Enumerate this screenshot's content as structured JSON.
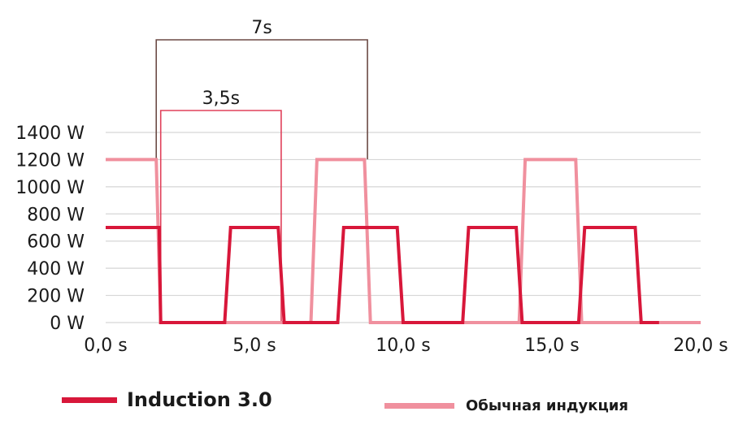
{
  "chart_data": {
    "type": "line",
    "x_ticks": [
      "0,0 s",
      "5,0 s",
      "10,0 s",
      "15,0 s",
      "20,0 s"
    ],
    "y_ticks": [
      "0 W",
      "200 W",
      "400 W",
      "600 W",
      "800 W",
      "1000 W",
      "1200 W",
      "1400 W"
    ],
    "xlim": [
      0,
      20
    ],
    "ylim": [
      0,
      1400
    ],
    "grid": true,
    "legend_position": "bottom",
    "series": [
      {
        "name": "Induction 3.0",
        "color": "#d8173a",
        "points": [
          [
            0.0,
            700
          ],
          [
            1.8,
            700
          ],
          [
            1.85,
            0
          ],
          [
            4.0,
            0
          ],
          [
            4.2,
            700
          ],
          [
            5.8,
            700
          ],
          [
            6.0,
            0
          ],
          [
            7.8,
            0
          ],
          [
            8.0,
            700
          ],
          [
            9.8,
            700
          ],
          [
            10.0,
            0
          ],
          [
            12.0,
            0
          ],
          [
            12.2,
            700
          ],
          [
            13.8,
            700
          ],
          [
            14.0,
            0
          ],
          [
            15.9,
            0
          ],
          [
            16.1,
            700
          ],
          [
            17.8,
            700
          ],
          [
            18.0,
            0
          ],
          [
            18.6,
            0
          ]
        ]
      },
      {
        "name": "Обычная индукция",
        "color": "#f0909e",
        "points": [
          [
            0.0,
            1200
          ],
          [
            1.7,
            1200
          ],
          [
            1.85,
            0
          ],
          [
            6.9,
            0
          ],
          [
            7.1,
            1200
          ],
          [
            8.7,
            1200
          ],
          [
            8.9,
            0
          ],
          [
            13.9,
            0
          ],
          [
            14.1,
            1200
          ],
          [
            15.8,
            1200
          ],
          [
            16.0,
            0
          ],
          [
            20.0,
            0
          ]
        ]
      }
    ],
    "annotations": [
      {
        "label": "7s",
        "x_start": 1.7,
        "x_end": 8.8,
        "color": "#6b4a45"
      },
      {
        "label": "3,5s",
        "x_start": 1.85,
        "x_end": 5.9,
        "color": "#e0405a"
      }
    ]
  }
}
